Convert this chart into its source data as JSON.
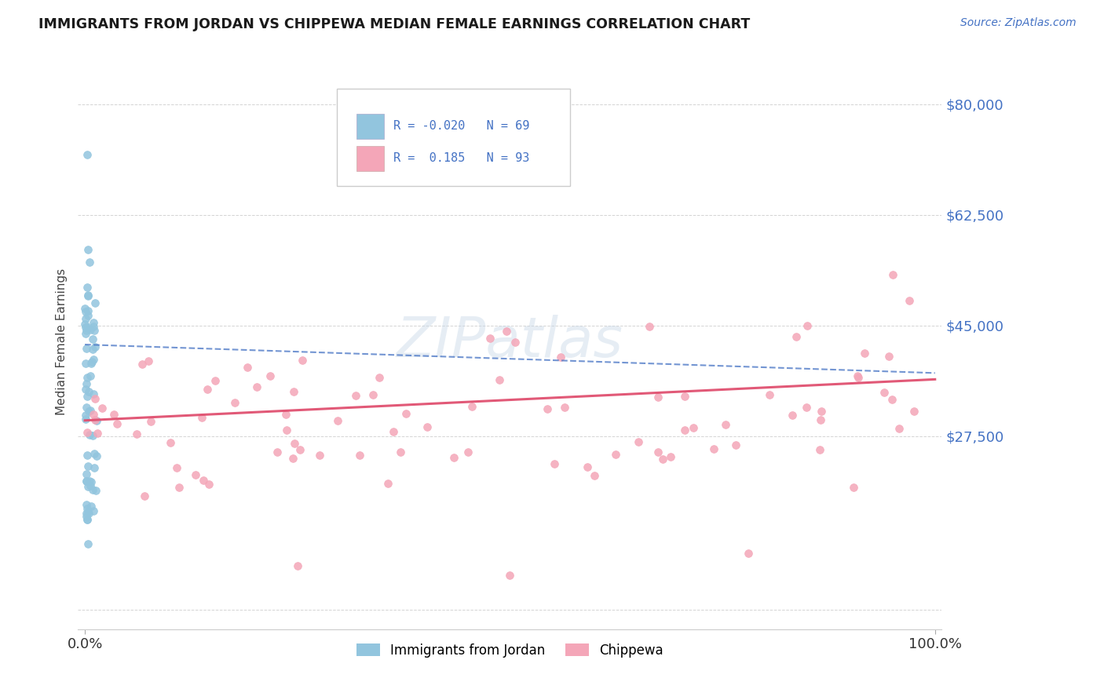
{
  "title": "IMMIGRANTS FROM JORDAN VS CHIPPEWA MEDIAN FEMALE EARNINGS CORRELATION CHART",
  "source": "Source: ZipAtlas.com",
  "ylabel": "Median Female Earnings",
  "ylim": [
    -3000,
    88000
  ],
  "xlim": [
    -0.008,
    1.008
  ],
  "color_blue": "#92c5de",
  "color_pink": "#f4a6b8",
  "color_line_blue": "#4472c4",
  "color_line_pink": "#e05070",
  "title_color": "#1a1a1a",
  "axis_label_color": "#4472c4",
  "grid_color": "#d0d0d0",
  "background_color": "#ffffff",
  "ytick_vals": [
    0,
    27500,
    45000,
    62500,
    80000
  ],
  "ytick_labels_right": [
    "",
    "$27,500",
    "$45,000",
    "$62,500",
    "$80,000"
  ],
  "blue_trend_y0": 42000,
  "blue_trend_y1": 37500,
  "pink_trend_y0": 30000,
  "pink_trend_y1": 36500
}
